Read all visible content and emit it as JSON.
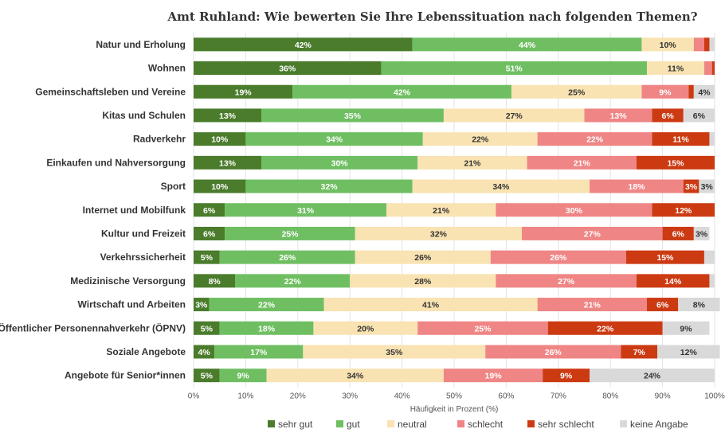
{
  "chart_data": {
    "type": "bar",
    "orientation": "horizontal",
    "stacked": true,
    "title": "Amt Ruhland: Wie bewerten Sie Ihre Lebenssituation nach folgenden Themen?",
    "xlabel": "Häufigkeit in Prozent (%)",
    "xlim": [
      0,
      100
    ],
    "x_ticks": [
      "0%",
      "10%",
      "20%",
      "30%",
      "40%",
      "50%",
      "60%",
      "70%",
      "80%",
      "90%",
      "100%"
    ],
    "grid": true,
    "legend_position": "bottom",
    "categories": [
      "Natur und Erholung",
      "Wohnen",
      "Gemeinschaftsleben und Vereine",
      "Kitas und Schulen",
      "Radverkehr",
      "Einkaufen und Nahversorgung",
      "Sport",
      "Internet und Mobilfunk",
      "Kultur und Freizeit",
      "Verkehrssicherheit",
      "Medizinische Versorgung",
      "Wirtschaft und Arbeiten",
      "Öffentlicher Personennahverkehr (ÖPNV)",
      "Soziale Angebote",
      "Angebote für Senior*innen"
    ],
    "series": [
      {
        "name": "sehr gut",
        "color": "#4a7c2c",
        "label_color": "#ffffff",
        "values": [
          42,
          36,
          19,
          13,
          10,
          13,
          10,
          6,
          6,
          5,
          8,
          3,
          5,
          4,
          5
        ],
        "labels": [
          "42%",
          "36%",
          "19%",
          "13%",
          "10%",
          "13%",
          "10%",
          "6%",
          "6%",
          "5%",
          "8%",
          "3%",
          "5%",
          "4%",
          "5%"
        ]
      },
      {
        "name": "gut",
        "color": "#6fbf62",
        "label_color": "#ffffff",
        "values": [
          44,
          51,
          42,
          35,
          34,
          30,
          32,
          31,
          25,
          26,
          22,
          22,
          18,
          17,
          9
        ],
        "labels": [
          "44%",
          "51%",
          "42%",
          "35%",
          "34%",
          "30%",
          "32%",
          "31%",
          "25%",
          "26%",
          "22%",
          "22%",
          "18%",
          "17%",
          "9%"
        ]
      },
      {
        "name": "neutral",
        "color": "#f9e3b2",
        "label_color": "#333333",
        "values": [
          10,
          11,
          25,
          27,
          22,
          21,
          34,
          21,
          32,
          26,
          28,
          41,
          20,
          35,
          34
        ],
        "labels": [
          "10%",
          "11%",
          "25%",
          "27%",
          "22%",
          "21%",
          "34%",
          "21%",
          "32%",
          "26%",
          "28%",
          "41%",
          "20%",
          "35%",
          "34%"
        ]
      },
      {
        "name": "schlecht",
        "color": "#ef8585",
        "label_color": "#ffffff",
        "values": [
          2,
          1.5,
          9,
          13,
          22,
          21,
          18,
          30,
          27,
          26,
          27,
          21,
          25,
          26,
          19
        ],
        "labels": [
          "",
          "",
          "9%",
          "13%",
          "22%",
          "21%",
          "18%",
          "30%",
          "27%",
          "26%",
          "27%",
          "21%",
          "25%",
          "26%",
          "19%"
        ]
      },
      {
        "name": "sehr schlecht",
        "color": "#cc3a12",
        "label_color": "#ffffff",
        "values": [
          1,
          0.5,
          1,
          6,
          11,
          15,
          3,
          12,
          6,
          15,
          14,
          6,
          22,
          7,
          9
        ],
        "labels": [
          "",
          "",
          "",
          "6%",
          "11%",
          "15%",
          "3%",
          "12%",
          "6%",
          "15%",
          "14%",
          "6%",
          "22%",
          "7%",
          "9%"
        ]
      },
      {
        "name": "keine Angabe",
        "color": "#d9d9d9",
        "label_color": "#333333",
        "values": [
          1,
          0,
          4,
          6,
          1,
          0,
          3,
          0,
          3,
          2,
          1,
          8,
          9,
          12,
          24
        ],
        "labels": [
          "",
          "",
          "4%",
          "6%",
          "",
          "",
          "3%",
          "",
          "3%",
          "",
          "",
          "8%",
          "9%",
          "12%",
          "24%"
        ]
      }
    ]
  }
}
